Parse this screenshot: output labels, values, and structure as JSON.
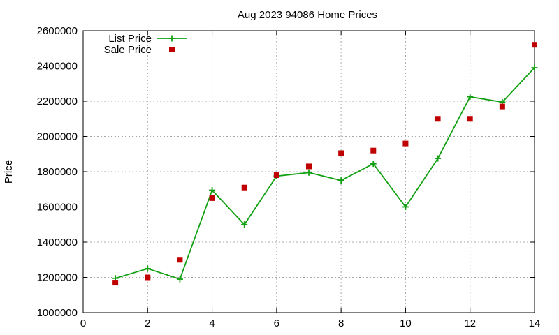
{
  "chart_data": {
    "type": "line",
    "title": "Aug 2023 94086 Home Prices",
    "xlabel": "",
    "ylabel": "Price",
    "xlim": [
      0,
      14
    ],
    "ylim": [
      1000000,
      2600000
    ],
    "x_ticks": [
      0,
      2,
      4,
      6,
      8,
      10,
      12,
      14
    ],
    "y_ticks": [
      1000000,
      1200000,
      1400000,
      1600000,
      1800000,
      2000000,
      2200000,
      2400000,
      2600000
    ],
    "grid": true,
    "legend_position": "top-left",
    "series": [
      {
        "name": "List Price",
        "style": "line-plus",
        "color": "#11a011",
        "x": [
          1,
          2,
          3,
          4,
          5,
          6,
          7,
          8,
          9,
          10,
          11,
          12,
          13,
          14
        ],
        "y": [
          1195000,
          1250000,
          1190000,
          1695000,
          1500000,
          1775000,
          1795000,
          1750000,
          1845000,
          1600000,
          1875000,
          2225000,
          2195000,
          2390000
        ]
      },
      {
        "name": "Sale Price",
        "style": "square",
        "color": "#c00000",
        "x": [
          1,
          2,
          3,
          4,
          5,
          6,
          7,
          8,
          9,
          10,
          11,
          12,
          13,
          14
        ],
        "y": [
          1170000,
          1200000,
          1300000,
          1650000,
          1710000,
          1780000,
          1830000,
          1905000,
          1920000,
          1960000,
          2100000,
          2100000,
          2170000,
          2520000
        ]
      }
    ]
  }
}
